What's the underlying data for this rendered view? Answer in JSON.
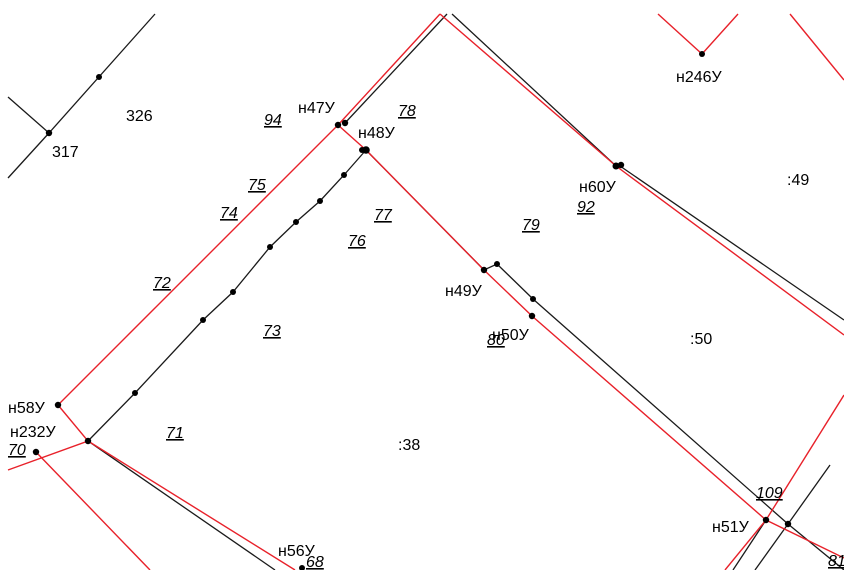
{
  "colors": {
    "boundary_red": "#e8212a",
    "boundary_black": "#1a1a1a",
    "point": "#000000"
  },
  "labels": {
    "l326": "326",
    "l317": "317",
    "l94": "94",
    "n47": "н47У",
    "l78": "78",
    "n48": "н48У",
    "n246": "н246У",
    "l49": ":49",
    "n60": "н60У",
    "l92": "92",
    "l75": "75",
    "l74": "74",
    "l77": "77",
    "l79": "79",
    "l76": "76",
    "l72": "72",
    "n49": "н49У",
    "l73": "73",
    "l80": "80",
    "n50": "н50У",
    "l50": ":50",
    "n58": "н58У",
    "n232": "н232У",
    "l70": "70",
    "l71": "71",
    "l38": ":38",
    "l109": "109",
    "n51": "н51У",
    "n56": "н56У",
    "l68": "68",
    "l81": "81"
  }
}
